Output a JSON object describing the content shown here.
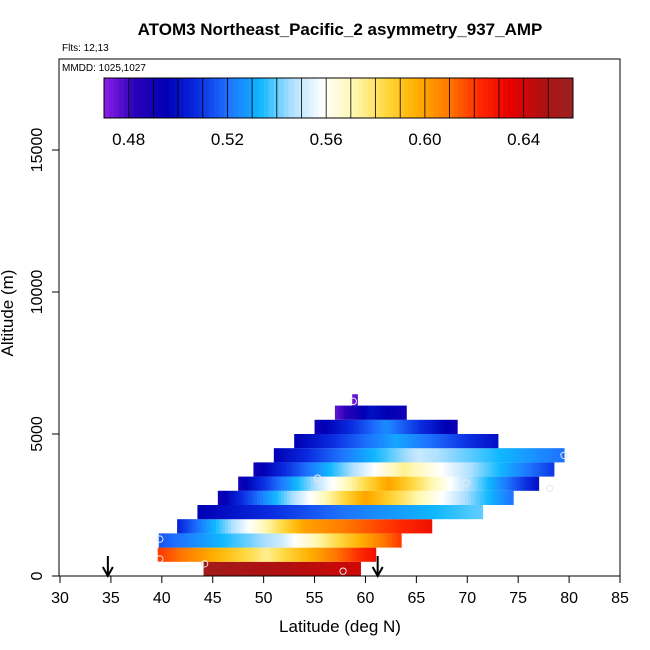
{
  "chart_data": {
    "type": "heatmap",
    "title": "ATOM3 Northeast_Pacific_2 asymmetry_937_AMP",
    "annotations": [
      "Flts: 12,13",
      "MMDD: 1025,1027"
    ],
    "xlabel": "Latitude (deg N)",
    "ylabel": "Altitude (m)",
    "xlim": [
      30,
      85
    ],
    "ylim": [
      0,
      17500
    ],
    "xticks": [
      30,
      35,
      40,
      45,
      50,
      55,
      60,
      65,
      70,
      75,
      80,
      85
    ],
    "yticks": [
      0,
      5000,
      10000,
      15000
    ],
    "grid": false,
    "colorbar": {
      "placement": "top-inside",
      "range": [
        0.47,
        0.66
      ],
      "ticks": [
        0.48,
        0.52,
        0.56,
        0.6,
        0.64
      ],
      "tick_labels": [
        "0.48",
        "0.52",
        "0.56",
        "0.60",
        "0.64"
      ],
      "colors": [
        "#8c20e8",
        "#2a00b8",
        "#0000b4",
        "#0a2ce0",
        "#1e74ff",
        "#10b8ff",
        "#aee0ff",
        "#ffffff",
        "#fff8b0",
        "#ffd840",
        "#ffb000",
        "#ff7a00",
        "#ff2a00",
        "#e80000",
        "#b01010",
        "#9a2222"
      ]
    },
    "bands": [
      {
        "alt": [
          0,
          500
        ],
        "lat": [
          44.1,
          59.5
        ],
        "value_left": 0.655,
        "value_right": 0.64
      },
      {
        "alt": [
          500,
          1000
        ],
        "lat": [
          39.6,
          61.0
        ],
        "value_left": 0.62,
        "value_mid": 0.575,
        "value_right": 0.63
      },
      {
        "alt": [
          1000,
          1500
        ],
        "lat": [
          39.7,
          63.5
        ],
        "value_left": 0.515,
        "value_mid": 0.55,
        "value_right": 0.62
      },
      {
        "alt": [
          1500,
          2000
        ],
        "lat": [
          41.5,
          66.5
        ],
        "value_left": 0.505,
        "value_mid": 0.6,
        "value_right": 0.63
      },
      {
        "alt": [
          2000,
          2500
        ],
        "lat": [
          43.5,
          71.5
        ],
        "value_left": 0.495,
        "value_mid": 0.52,
        "value_right": 0.54
      },
      {
        "alt": [
          2500,
          3000
        ],
        "lat": [
          45.5,
          74.5
        ],
        "value_left": 0.49,
        "value_mid": 0.6,
        "value_right": 0.52
      },
      {
        "alt": [
          3000,
          3500
        ],
        "lat": [
          47.5,
          77.0
        ],
        "value_left": 0.49,
        "value_mid": 0.6,
        "value_right": 0.5
      },
      {
        "alt": [
          3500,
          4000
        ],
        "lat": [
          49.0,
          78.5
        ],
        "value_left": 0.49,
        "value_mid": 0.575,
        "value_right": 0.51
      },
      {
        "alt": [
          4000,
          4500
        ],
        "lat": [
          51.0,
          79.5
        ],
        "value_left": 0.495,
        "value_mid": 0.55,
        "value_right": 0.52
      },
      {
        "alt": [
          4500,
          5000
        ],
        "lat": [
          53.0,
          73.0
        ],
        "value_left": 0.495,
        "value_mid": 0.53,
        "value_right": 0.5
      },
      {
        "alt": [
          5000,
          5500
        ],
        "lat": [
          55.0,
          69.0
        ],
        "value_left": 0.49,
        "value_mid": 0.525,
        "value_right": 0.49
      },
      {
        "alt": [
          5500,
          6000
        ],
        "lat": [
          57.0,
          64.0
        ],
        "value_left": 0.475,
        "value_mid": 0.5,
        "value_right": 0.49
      },
      {
        "alt": [
          6000,
          6400
        ],
        "lat": [
          58.7,
          59.2
        ],
        "value_left": 0.475,
        "value_right": 0.475
      }
    ],
    "markers": [
      {
        "lat": 39.8,
        "alt": 1300
      },
      {
        "lat": 39.8,
        "alt": 600
      },
      {
        "lat": 44.2,
        "alt": 430
      },
      {
        "lat": 55.3,
        "alt": 3450
      },
      {
        "lat": 57.8,
        "alt": 170
      },
      {
        "lat": 58.8,
        "alt": 6150
      },
      {
        "lat": 69.9,
        "alt": 3280
      },
      {
        "lat": 78.1,
        "alt": 3080
      },
      {
        "lat": 79.5,
        "alt": 4250
      }
    ],
    "arrows": [
      {
        "lat": 34.7
      },
      {
        "lat": 61.2
      }
    ]
  }
}
